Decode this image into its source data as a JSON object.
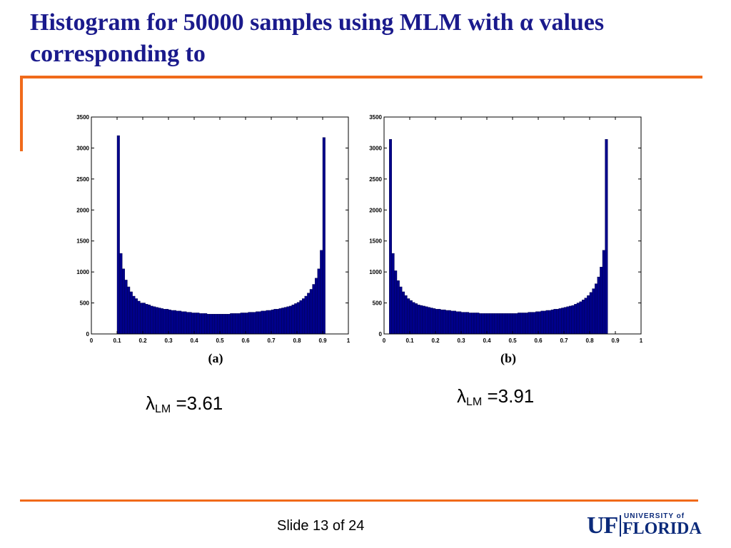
{
  "slide": {
    "title": "Histogram for 50000 samples using MLM with α values corresponding to",
    "slide_number": "Slide 13 of 24",
    "colors": {
      "title": "#1a1a8c",
      "accent": "#f06a1a",
      "bar": "#00008b",
      "logo": "#0b2a7a"
    },
    "logo": {
      "uf": "UF",
      "university_of": "UNIVERSITY of",
      "florida": "FLORIDA"
    }
  },
  "lambdas": [
    {
      "symbol": "λ",
      "subscript": "LM",
      "value": "=3.61"
    },
    {
      "symbol": "λ",
      "subscript": "LM",
      "value": "=3.91"
    }
  ],
  "chart_data": [
    {
      "type": "bar",
      "caption": "(a)",
      "title": "",
      "xlabel": "",
      "ylabel": "",
      "xlim": [
        0,
        1
      ],
      "ylim": [
        0,
        3500
      ],
      "xticks": [
        "0",
        "0.1",
        "0.2",
        "0.3",
        "0.4",
        "0.5",
        "0.6",
        "0.7",
        "0.8",
        "0.9",
        "1"
      ],
      "yticks": [
        "0",
        "500",
        "1000",
        "1500",
        "2000",
        "2500",
        "3000",
        "3500"
      ],
      "bin_start": 0.1,
      "bin_width": 0.01,
      "values": [
        3200,
        1300,
        1050,
        870,
        760,
        680,
        610,
        570,
        530,
        500,
        500,
        480,
        470,
        450,
        440,
        430,
        420,
        410,
        400,
        400,
        390,
        380,
        380,
        370,
        370,
        360,
        360,
        350,
        350,
        340,
        340,
        340,
        330,
        330,
        330,
        320,
        320,
        320,
        320,
        320,
        320,
        320,
        320,
        320,
        330,
        330,
        330,
        330,
        340,
        340,
        340,
        350,
        350,
        350,
        360,
        360,
        370,
        370,
        380,
        380,
        390,
        400,
        400,
        410,
        420,
        430,
        440,
        450,
        470,
        490,
        510,
        540,
        570,
        610,
        660,
        720,
        800,
        900,
        1050,
        1350,
        3170
      ]
    },
    {
      "type": "bar",
      "caption": "(b)",
      "title": "",
      "xlabel": "",
      "ylabel": "",
      "xlim": [
        0,
        1
      ],
      "ylim": [
        0,
        3500
      ],
      "xticks": [
        "0",
        "0.1",
        "0.2",
        "0.3",
        "0.4",
        "0.5",
        "0.6",
        "0.7",
        "0.8",
        "0.9",
        "1"
      ],
      "yticks": [
        "0",
        "500",
        "1000",
        "1500",
        "2000",
        "2500",
        "3000",
        "3500"
      ],
      "bin_start": 0.02,
      "bin_width": 0.01,
      "values": [
        3140,
        1300,
        1020,
        860,
        760,
        680,
        620,
        570,
        540,
        510,
        490,
        470,
        460,
        450,
        440,
        430,
        420,
        410,
        400,
        400,
        390,
        390,
        380,
        380,
        370,
        370,
        360,
        360,
        350,
        350,
        350,
        340,
        340,
        340,
        340,
        330,
        330,
        330,
        330,
        330,
        330,
        330,
        330,
        330,
        330,
        330,
        330,
        330,
        330,
        330,
        340,
        340,
        340,
        340,
        350,
        350,
        350,
        360,
        360,
        370,
        370,
        380,
        380,
        390,
        400,
        400,
        410,
        420,
        430,
        440,
        450,
        460,
        480,
        500,
        520,
        550,
        580,
        620,
        670,
        730,
        810,
        920,
        1080,
        1350,
        3140
      ]
    }
  ]
}
